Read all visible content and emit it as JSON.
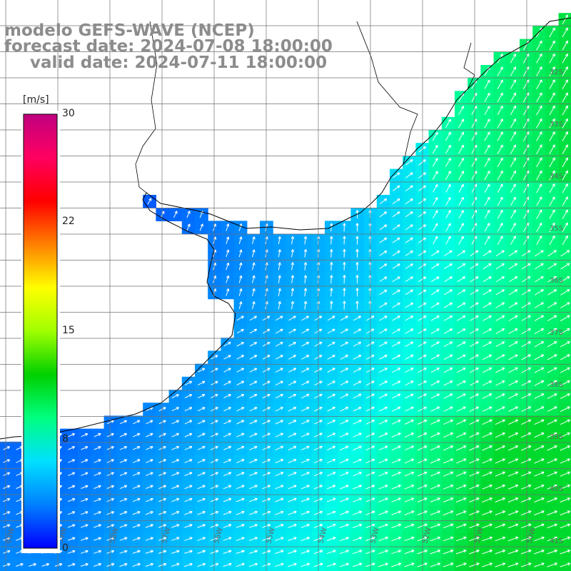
{
  "title": {
    "line1": "modelo GEFS-WAVE (NCEP)",
    "line2": "forecast date: 2024-07-08 18:00:00",
    "line3": "valid date: 2024-07-11 18:00:00"
  },
  "colorbar": {
    "unit": "[m/s]",
    "ticks": [
      "30",
      "22",
      "15",
      "8",
      "0"
    ],
    "min": 0,
    "max": 30,
    "colors": [
      "#0000ff",
      "#0080ff",
      "#00e0ff",
      "#00ff80",
      "#00d000",
      "#a0ff00",
      "#ffff00",
      "#ff8000",
      "#ff0000",
      "#ff0060",
      "#c00080"
    ]
  },
  "map": {
    "lat_labels": [
      "32S",
      "33S",
      "34S",
      "35S",
      "36S",
      "37S",
      "38S",
      "39S",
      "40S",
      "41S"
    ],
    "lon_labels": [
      "60W",
      "59W",
      "58W",
      "57W",
      "56W",
      "55W",
      "54W",
      "53W",
      "52W",
      "51W",
      "50W"
    ],
    "land_color": "#ffffff",
    "grid_color": "#707070",
    "coast_color": "#000000",
    "arrow_color": "#ffffff"
  }
}
